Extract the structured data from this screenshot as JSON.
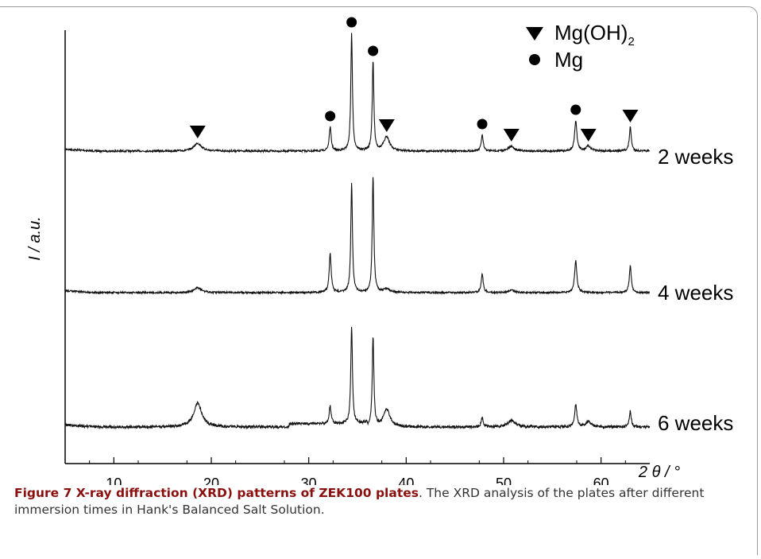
{
  "chart_data": {
    "type": "line",
    "title": "",
    "xlabel": "2 θ / °",
    "ylabel": "I / a.u.",
    "xlim": [
      5,
      65
    ],
    "xticks": [
      10,
      20,
      30,
      40,
      50,
      60
    ],
    "yticks_shown": false,
    "series": [
      {
        "name": "2 weeks",
        "baseline": 0.0,
        "peaks": [
          {
            "x": 18.6,
            "height": 10,
            "width": 0.45,
            "phase": "Mg(OH)2"
          },
          {
            "x": 32.2,
            "height": 30,
            "width": 0.12,
            "phase": "Mg"
          },
          {
            "x": 34.4,
            "height": 148,
            "width": 0.1,
            "phase": "Mg"
          },
          {
            "x": 36.6,
            "height": 112,
            "width": 0.1,
            "phase": "Mg"
          },
          {
            "x": 38.0,
            "height": 18,
            "width": 0.35,
            "phase": "Mg(OH)2"
          },
          {
            "x": 47.8,
            "height": 20,
            "width": 0.12,
            "phase": "Mg"
          },
          {
            "x": 50.8,
            "height": 6,
            "width": 0.35,
            "phase": "Mg(OH)2"
          },
          {
            "x": 57.4,
            "height": 38,
            "width": 0.14,
            "phase": "Mg"
          },
          {
            "x": 58.7,
            "height": 6,
            "width": 0.3,
            "phase": "Mg(OH)2"
          },
          {
            "x": 63.0,
            "height": 30,
            "width": 0.12,
            "phase": "Mg(OH)2"
          }
        ]
      },
      {
        "name": "4 weeks",
        "baseline": 0.0,
        "peaks": [
          {
            "x": 18.6,
            "height": 6,
            "width": 0.45
          },
          {
            "x": 32.2,
            "height": 50,
            "width": 0.12
          },
          {
            "x": 34.4,
            "height": 138,
            "width": 0.1
          },
          {
            "x": 36.6,
            "height": 145,
            "width": 0.1
          },
          {
            "x": 38.0,
            "height": 5,
            "width": 0.35
          },
          {
            "x": 47.8,
            "height": 24,
            "width": 0.12
          },
          {
            "x": 50.8,
            "height": 3,
            "width": 0.35
          },
          {
            "x": 57.4,
            "height": 40,
            "width": 0.14
          },
          {
            "x": 63.0,
            "height": 34,
            "width": 0.12
          }
        ]
      },
      {
        "name": "6 weeks",
        "baseline": 0.0,
        "peaks": [
          {
            "x": 18.6,
            "height": 30,
            "width": 0.5
          },
          {
            "x": 32.2,
            "height": 22,
            "width": 0.12
          },
          {
            "x": 34.4,
            "height": 122,
            "width": 0.1
          },
          {
            "x": 36.6,
            "height": 112,
            "width": 0.1
          },
          {
            "x": 38.0,
            "height": 22,
            "width": 0.4
          },
          {
            "x": 47.8,
            "height": 12,
            "width": 0.12
          },
          {
            "x": 50.8,
            "height": 8,
            "width": 0.45
          },
          {
            "x": 57.4,
            "height": 28,
            "width": 0.14
          },
          {
            "x": 58.7,
            "height": 7,
            "width": 0.3
          },
          {
            "x": 63.0,
            "height": 20,
            "width": 0.12
          }
        ]
      }
    ],
    "markers": [
      {
        "symbol": "triangle",
        "x": 18.6
      },
      {
        "symbol": "circle",
        "x": 32.2
      },
      {
        "symbol": "circle",
        "x": 34.4
      },
      {
        "symbol": "circle",
        "x": 36.6
      },
      {
        "symbol": "triangle",
        "x": 38.0
      },
      {
        "symbol": "circle",
        "x": 47.8
      },
      {
        "symbol": "triangle",
        "x": 50.8
      },
      {
        "symbol": "circle",
        "x": 57.4
      },
      {
        "symbol": "triangle",
        "x": 58.7
      },
      {
        "symbol": "triangle",
        "x": 63.0
      }
    ],
    "legend": {
      "placement": "top-right",
      "entries": [
        {
          "symbol": "triangle",
          "label": "Mg(OH)",
          "subscript": "2"
        },
        {
          "symbol": "circle",
          "label": "Mg",
          "subscript": ""
        }
      ]
    }
  },
  "caption": {
    "bold": "Figure 7 X-ray diffraction (XRD) patterns of ZEK100 plates",
    "text": ". The XRD analysis of the plates after different immersion times in Hank's Balanced Salt Solution."
  },
  "colors": {
    "line": "#111111",
    "caption_bold": "#8a1010",
    "caption_text": "#333333"
  }
}
